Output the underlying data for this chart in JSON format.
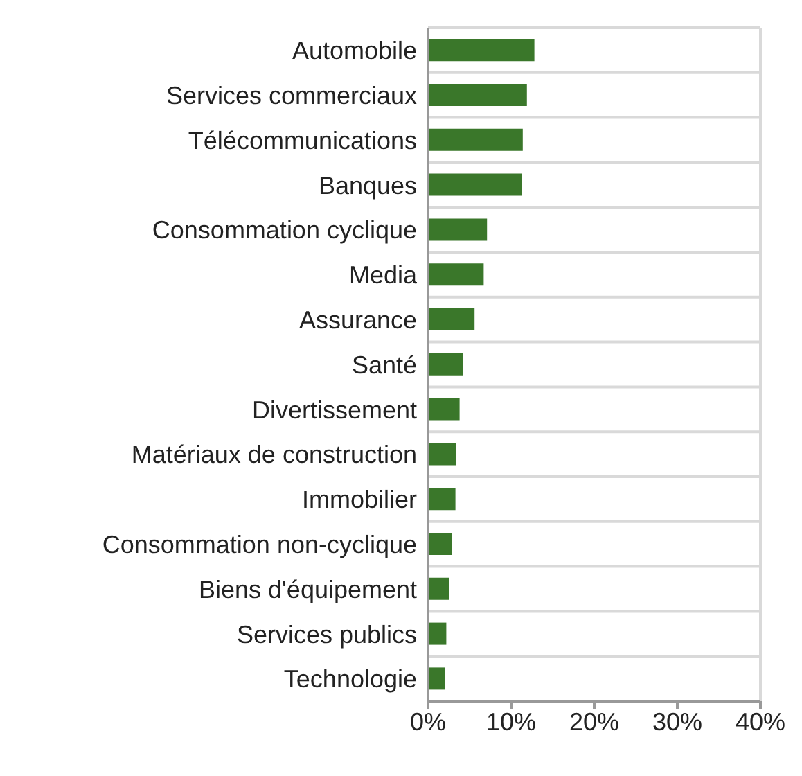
{
  "chart_data": {
    "type": "bar",
    "orientation": "horizontal",
    "categories": [
      "Automobile",
      "Services commerciaux",
      "Télécommunications",
      "Banques",
      "Consommation cyclique",
      "Media",
      "Assurance",
      "Santé",
      "Divertissement",
      "Matériaux de construction",
      "Immobilier",
      "Consommation non-cyclique",
      "Biens d'équipement",
      "Services publics",
      "Technologie"
    ],
    "values": [
      12.8,
      11.9,
      11.4,
      11.3,
      7.1,
      6.7,
      5.6,
      4.2,
      3.8,
      3.4,
      3.3,
      2.9,
      2.5,
      2.2,
      2.0
    ],
    "color": "#3a772a",
    "xlim": [
      0,
      40
    ],
    "xticks": [
      {
        "value": 0,
        "label": "0%"
      },
      {
        "value": 10,
        "label": "10%"
      },
      {
        "value": 20,
        "label": "20%"
      },
      {
        "value": 30,
        "label": "30%"
      },
      {
        "value": 40,
        "label": "40%"
      }
    ],
    "grid": "y"
  }
}
